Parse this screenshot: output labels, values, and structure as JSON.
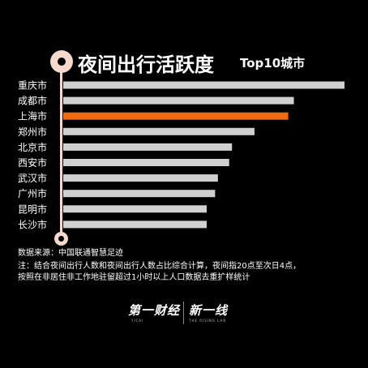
{
  "header": {
    "title": "夜间出行活跃度",
    "subtitle": "Top10城市"
  },
  "chart_data": {
    "type": "bar",
    "orientation": "horizontal",
    "title": "夜间出行活跃度",
    "subtitle": "Top10城市",
    "categories": [
      "重庆市",
      "成都市",
      "上海市",
      "郑州市",
      "北京市",
      "西安市",
      "武汉市",
      "广州市",
      "昆明市",
      "长沙市"
    ],
    "values": [
      100,
      82,
      80,
      68,
      60,
      59,
      55,
      54,
      51,
      51
    ],
    "highlight_index": 2,
    "colors": {
      "bar": "#d0d0d0",
      "highlight": "#f06a10",
      "background": "#000000",
      "timeline": "#f4d9cc"
    },
    "axis_visible": false,
    "grid": false,
    "xlim": [
      0,
      100
    ]
  },
  "footer": {
    "source": "数据来源：中国联通智慧足迹",
    "note_line1": "注：结合夜间出行人数和夜间出行人数占比综合计算，夜间指20点至次日4点，",
    "note_line2": "按照在非居住非工作地驻留超过1小时以上人口数据去重扩样统计"
  },
  "logos": {
    "left": "第一财经",
    "left_sub": "YICAI",
    "right": "新一线",
    "right_sub": "THE RISING LAB"
  }
}
